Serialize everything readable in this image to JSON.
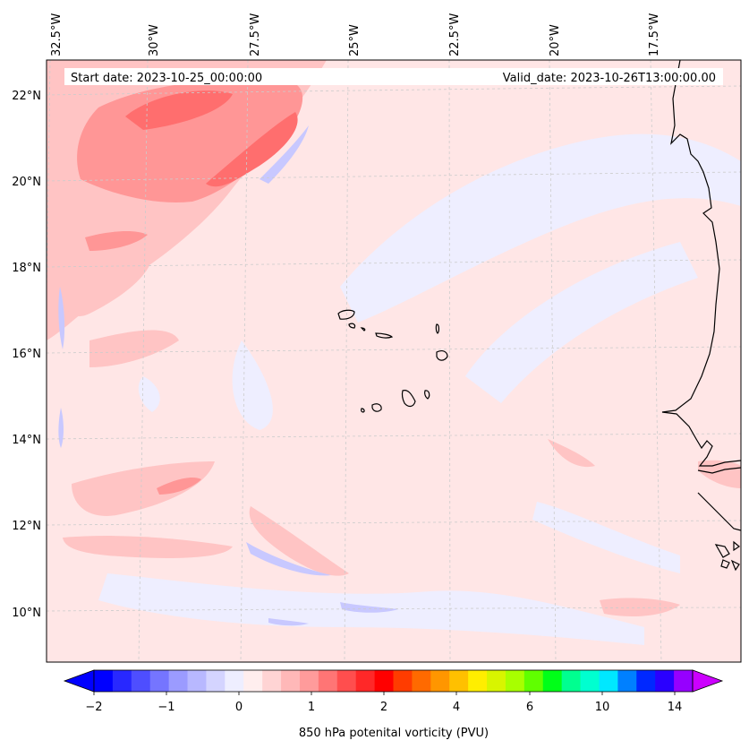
{
  "header": {
    "start_date": "Start date: 2023-10-25_00:00:00",
    "valid_date": "Valid_date: 2023-10-26T13:00:00.00"
  },
  "axes": {
    "lon_labels": [
      "32.5°W",
      "30°W",
      "27.5°W",
      "25°W",
      "22.5°W",
      "20°W",
      "17.5°W"
    ],
    "lat_labels": [
      "22°N",
      "20°N",
      "18°N",
      "16°N",
      "14°N",
      "12°N",
      "10°N"
    ]
  },
  "colorbar": {
    "title": "850 hPa potenital vorticity (PVU)",
    "tick_labels": [
      "−2",
      "−1",
      "0",
      "1",
      "2",
      "4",
      "6",
      "10",
      "14"
    ],
    "colors": [
      "#0000ff",
      "#2828ff",
      "#4e4eff",
      "#7575ff",
      "#9b9bff",
      "#b8b8ff",
      "#d4d4ff",
      "#eeeeff",
      "#ffeeee",
      "#ffd4d4",
      "#ffb8b8",
      "#ff9b9b",
      "#ff7575",
      "#ff4e4e",
      "#ff2828",
      "#ff0000",
      "#ff3c00",
      "#ff6a00",
      "#ff9600",
      "#ffc000",
      "#ffee00",
      "#d8f500",
      "#a8ff00",
      "#60ff00",
      "#00ff18",
      "#00ff90",
      "#00ffd0",
      "#00e8ff",
      "#0080ff",
      "#0028ff",
      "#2a00ff",
      "#9600ff"
    ],
    "extend_low_color": "#0000ff",
    "extend_high_color": "#cc00ff"
  },
  "field_colors": {
    "background": "#ffe6e6",
    "light_blue": "#eeeeff",
    "blue": "#c8c8ff",
    "pink": "#ffc4c4",
    "red": "#ff9696",
    "dark_red": "#ff6e6e"
  }
}
